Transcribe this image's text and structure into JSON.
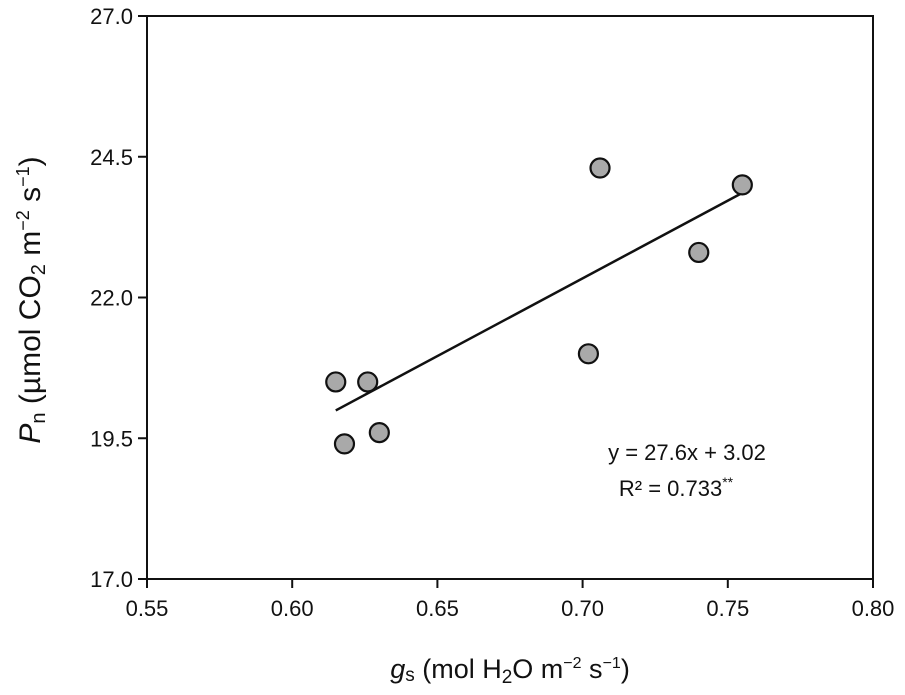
{
  "chart_data": {
    "type": "scatter",
    "title": "",
    "xlabel": {
      "var": "g",
      "var_sub": "s",
      "text_pre": " (mol H",
      "text_sub": "2",
      "text_mid": "O m",
      "text_sup1": "−2",
      "text_mid2": " s",
      "text_sup2": "−1",
      "text_post": ")"
    },
    "ylabel": {
      "var": "P",
      "var_sub": "n",
      "text_pre": " (µmol CO",
      "text_sub": "2",
      "text_mid": " m",
      "text_sup1": "−2",
      "text_mid2": " s",
      "text_sup2": "−1",
      "text_post": ")"
    },
    "xlim": [
      0.55,
      0.8
    ],
    "ylim": [
      17.0,
      27.0
    ],
    "xticks": [
      0.55,
      0.6,
      0.65,
      0.7,
      0.75,
      0.8
    ],
    "xtick_labels": [
      "0.55",
      "0.60",
      "0.65",
      "0.70",
      "0.75",
      "0.80"
    ],
    "yticks": [
      17.0,
      19.5,
      22.0,
      24.5,
      27.0
    ],
    "ytick_labels": [
      "17.0",
      "19.5",
      "22.0",
      "24.5",
      "27.0"
    ],
    "points": [
      {
        "x": 0.615,
        "y": 20.5
      },
      {
        "x": 0.626,
        "y": 20.5
      },
      {
        "x": 0.618,
        "y": 19.4
      },
      {
        "x": 0.63,
        "y": 19.6
      },
      {
        "x": 0.702,
        "y": 21.0
      },
      {
        "x": 0.706,
        "y": 24.3
      },
      {
        "x": 0.74,
        "y": 22.8
      },
      {
        "x": 0.755,
        "y": 24.0
      }
    ],
    "fit_line": {
      "slope": 27.6,
      "intercept": 3.02,
      "x_start": 0.615,
      "x_end": 0.755
    },
    "equation_text": "y = 27.6x + 3.02",
    "r2_text": "R² = 0.733",
    "r2_sig": "**",
    "marker_fill": "#a9a9a9",
    "marker_stroke": "#111111",
    "grid": false,
    "legend": "none"
  }
}
